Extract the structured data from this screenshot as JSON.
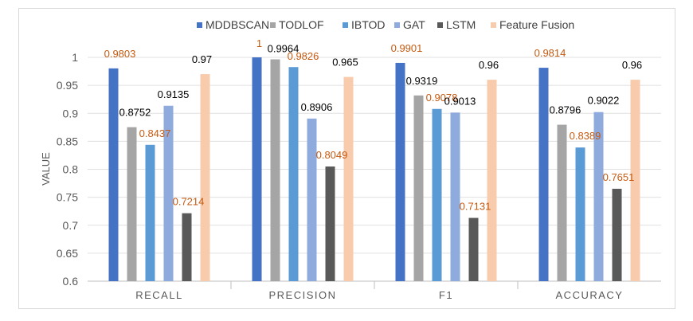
{
  "chart_data": {
    "type": "bar",
    "title": "",
    "xlabel": "",
    "ylabel": "VALUE",
    "ylim": [
      0.6,
      1.0
    ],
    "yticks": [
      "0.6",
      "0.65",
      "0.7",
      "0.75",
      "0.8",
      "0.85",
      "0.9",
      "0.95",
      "1"
    ],
    "categories": [
      "RECALL",
      "PRECISION",
      "F1",
      "ACCURACY"
    ],
    "legend_position": "top",
    "series": [
      {
        "name": "MDDBSCAN",
        "color": "#4472c4",
        "values": [
          0.9803,
          1,
          0.9901,
          0.9814
        ],
        "labels": [
          "0.9803",
          "1",
          "0.9901",
          "0.9814"
        ],
        "label_color": "#c55a11"
      },
      {
        "name": "TODLOF",
        "color": "#a5a5a5",
        "values": [
          0.8752,
          0.9964,
          0.9319,
          0.8796
        ],
        "labels": [
          "0.8752",
          "0.9964",
          "0.9319",
          "0.8796"
        ],
        "label_color": "#000000"
      },
      {
        "name": "IBTOD",
        "color": "#5b9bd5",
        "values": [
          0.8437,
          0.9826,
          0.9078,
          0.8389
        ],
        "labels": [
          "0.8437",
          "0.9826",
          "0.9078",
          "0.8389"
        ],
        "label_color": "#c55a11"
      },
      {
        "name": "GAT",
        "color": "#8faadc",
        "values": [
          0.9135,
          0.8906,
          0.9013,
          0.9022
        ],
        "labels": [
          "0.9135",
          "0.8906",
          "0.9013",
          "0.9022"
        ],
        "label_color": "#000000"
      },
      {
        "name": "LSTM",
        "color": "#595959",
        "values": [
          0.7214,
          0.8049,
          0.7131,
          0.7651
        ],
        "labels": [
          "0.7214",
          "0.8049",
          "0.7131",
          "0.7651"
        ],
        "label_color": "#c55a11"
      },
      {
        "name": "Feature Fusion",
        "color": "#f8cbad",
        "values": [
          0.97,
          0.965,
          0.96,
          0.96
        ],
        "labels": [
          "0.97",
          "0.965",
          "0.96",
          "0.96"
        ],
        "label_color": "#000000"
      }
    ]
  }
}
